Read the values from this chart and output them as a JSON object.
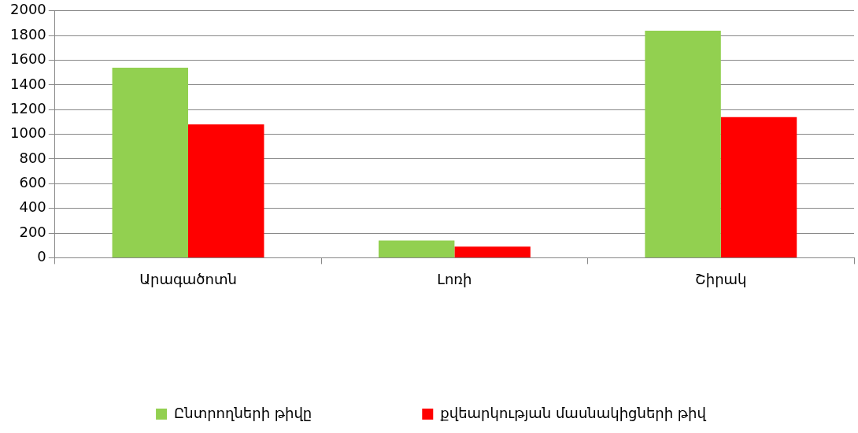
{
  "chart_data": {
    "type": "bar",
    "categories": [
      "Արագածոտն",
      "Լոռի",
      "Շիրակ"
    ],
    "series": [
      {
        "name": "Ընտրողների թիվը",
        "color": "#92d050",
        "values": [
          1540,
          140,
          1840
        ]
      },
      {
        "name": "քվեարկության մասնակիցների թիվ",
        "color": "#ff0000",
        "values": [
          1080,
          90,
          1140
        ]
      }
    ],
    "ylim": [
      0,
      2000
    ],
    "yticks": [
      0,
      200,
      400,
      600,
      800,
      1000,
      1200,
      1400,
      1600,
      1800,
      2000
    ],
    "grid": "y",
    "legend": "bottom"
  }
}
